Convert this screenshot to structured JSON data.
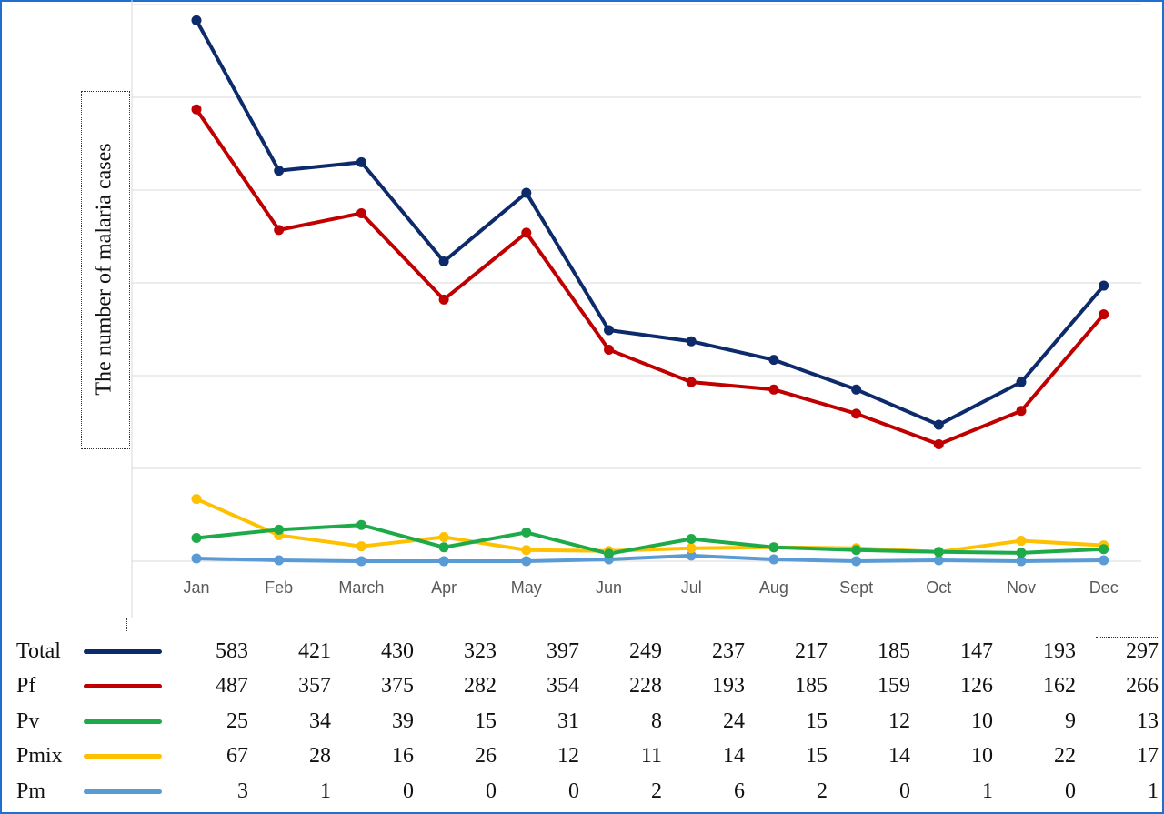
{
  "chart_data": {
    "type": "line",
    "categories": [
      "Jan",
      "Feb",
      "March",
      "Apr",
      "May",
      "Jun",
      "Jul",
      "Aug",
      "Sept",
      "Oct",
      "Nov",
      "Dec"
    ],
    "ylabel": "The number of malaria cases",
    "ylim": [
      0,
      600
    ],
    "grid": true,
    "legend": "data table below chart",
    "series": [
      {
        "name": "Total",
        "color": "#0d2b6b",
        "values": [
          583,
          421,
          430,
          323,
          397,
          249,
          237,
          217,
          185,
          147,
          193,
          297
        ]
      },
      {
        "name": "Pf",
        "color": "#c00000",
        "values": [
          487,
          357,
          375,
          282,
          354,
          228,
          193,
          185,
          159,
          126,
          162,
          266
        ]
      },
      {
        "name": "Pv",
        "color": "#1faa4a",
        "values": [
          25,
          34,
          39,
          15,
          31,
          8,
          24,
          15,
          12,
          10,
          9,
          13
        ]
      },
      {
        "name": "Pmix",
        "color": "#ffc000",
        "values": [
          67,
          28,
          16,
          26,
          12,
          11,
          14,
          15,
          14,
          10,
          22,
          17
        ]
      },
      {
        "name": "Pm",
        "color": "#5b9bd5",
        "values": [
          3,
          1,
          0,
          0,
          0,
          2,
          6,
          2,
          0,
          1,
          0,
          1
        ]
      }
    ]
  }
}
